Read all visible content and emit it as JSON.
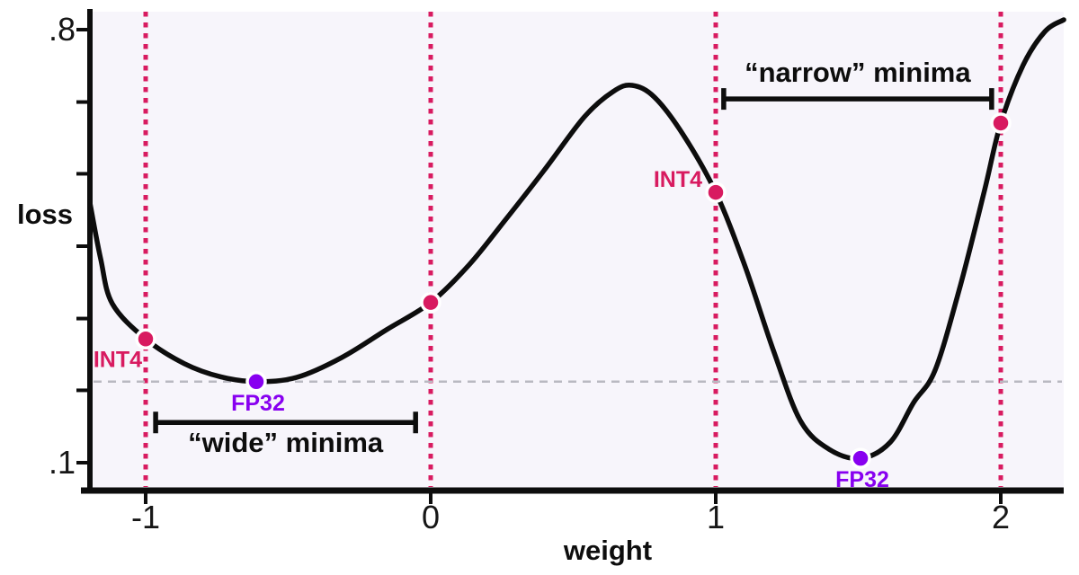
{
  "figure": {
    "title": "",
    "y_axis_label": "loss",
    "x_axis_label": "weight"
  },
  "colors": {
    "quantized": "#d81b60",
    "full_precision": "#8800f0",
    "curve": "#0d0d0d",
    "plot_background": "#f7f5fb",
    "dashed_reference": "#b9b9c1",
    "axis": "#0d0d0d"
  },
  "chart_data": {
    "type": "line",
    "title": "",
    "xlabel": "weight",
    "ylabel": "loss",
    "xlim": [
      -1.2,
      2.22
    ],
    "ylim": [
      0.1,
      0.8
    ],
    "grid": false,
    "legend": "none",
    "x_ticks": [
      {
        "value": -1,
        "label": "-1"
      },
      {
        "value": 0,
        "label": "0"
      },
      {
        "value": 1,
        "label": "1"
      },
      {
        "value": 2,
        "label": "2"
      }
    ],
    "y_ticks": [
      {
        "value": 0.8,
        "label": ".8"
      },
      {
        "value": 0.683,
        "label": ""
      },
      {
        "value": 0.567,
        "label": ""
      },
      {
        "value": 0.45,
        "label": ""
      },
      {
        "value": 0.333,
        "label": ""
      },
      {
        "value": 0.217,
        "label": ""
      },
      {
        "value": 0.1,
        "label": ".1"
      }
    ],
    "curve_points": [
      [
        -1.196,
        0.521
      ],
      [
        -1.158,
        0.43
      ],
      [
        -1.117,
        0.357
      ],
      [
        -1.0,
        0.3
      ],
      [
        -0.864,
        0.26
      ],
      [
        -0.738,
        0.239
      ],
      [
        -0.612,
        0.231
      ],
      [
        -0.47,
        0.238
      ],
      [
        -0.312,
        0.27
      ],
      [
        -0.155,
        0.315
      ],
      [
        0.0,
        0.359
      ],
      [
        0.135,
        0.42
      ],
      [
        0.256,
        0.489
      ],
      [
        0.397,
        0.572
      ],
      [
        0.539,
        0.659
      ],
      [
        0.64,
        0.7
      ],
      [
        0.707,
        0.71
      ],
      [
        0.785,
        0.691
      ],
      [
        0.886,
        0.63
      ],
      [
        1.0,
        0.537
      ],
      [
        1.101,
        0.42
      ],
      [
        1.202,
        0.282
      ],
      [
        1.297,
        0.168
      ],
      [
        1.397,
        0.122
      ],
      [
        1.508,
        0.107
      ],
      [
        1.612,
        0.133
      ],
      [
        1.694,
        0.197
      ],
      [
        1.77,
        0.25
      ],
      [
        1.858,
        0.386
      ],
      [
        1.943,
        0.54
      ],
      [
        2.0,
        0.649
      ],
      [
        2.079,
        0.743
      ],
      [
        2.155,
        0.797
      ],
      [
        2.221,
        0.816
      ]
    ],
    "vertical_guides": {
      "values": [
        -1,
        0,
        1,
        2
      ],
      "style": "dotted",
      "color_key": "quantized"
    },
    "horizontal_guide": {
      "loss": 0.231,
      "style": "dashed",
      "color_key": "dashed_reference"
    },
    "markers": [
      {
        "weight": -1.0,
        "loss": 0.3,
        "type": "INT4",
        "label": "INT4",
        "label_placement": "below-left"
      },
      {
        "weight": -0.612,
        "loss": 0.231,
        "type": "FP32",
        "label": "FP32",
        "label_placement": "below"
      },
      {
        "weight": 0.0,
        "loss": 0.359,
        "type": "INT4",
        "label": "",
        "label_placement": "none"
      },
      {
        "weight": 1.0,
        "loss": 0.537,
        "type": "INT4",
        "label": "INT4",
        "label_placement": "above-left"
      },
      {
        "weight": 1.508,
        "loss": 0.107,
        "type": "FP32",
        "label": "FP32",
        "label_placement": "below"
      },
      {
        "weight": 2.0,
        "loss": 0.649,
        "type": "INT4",
        "label": "",
        "label_placement": "none"
      }
    ],
    "brackets": [
      {
        "from_weight": -0.965,
        "to_weight": -0.053,
        "loss": 0.165,
        "label": "“wide” minima",
        "label_side": "below"
      },
      {
        "from_weight": 1.028,
        "to_weight": 1.968,
        "loss": 0.688,
        "label": "“narrow” minima",
        "label_side": "above"
      }
    ]
  }
}
